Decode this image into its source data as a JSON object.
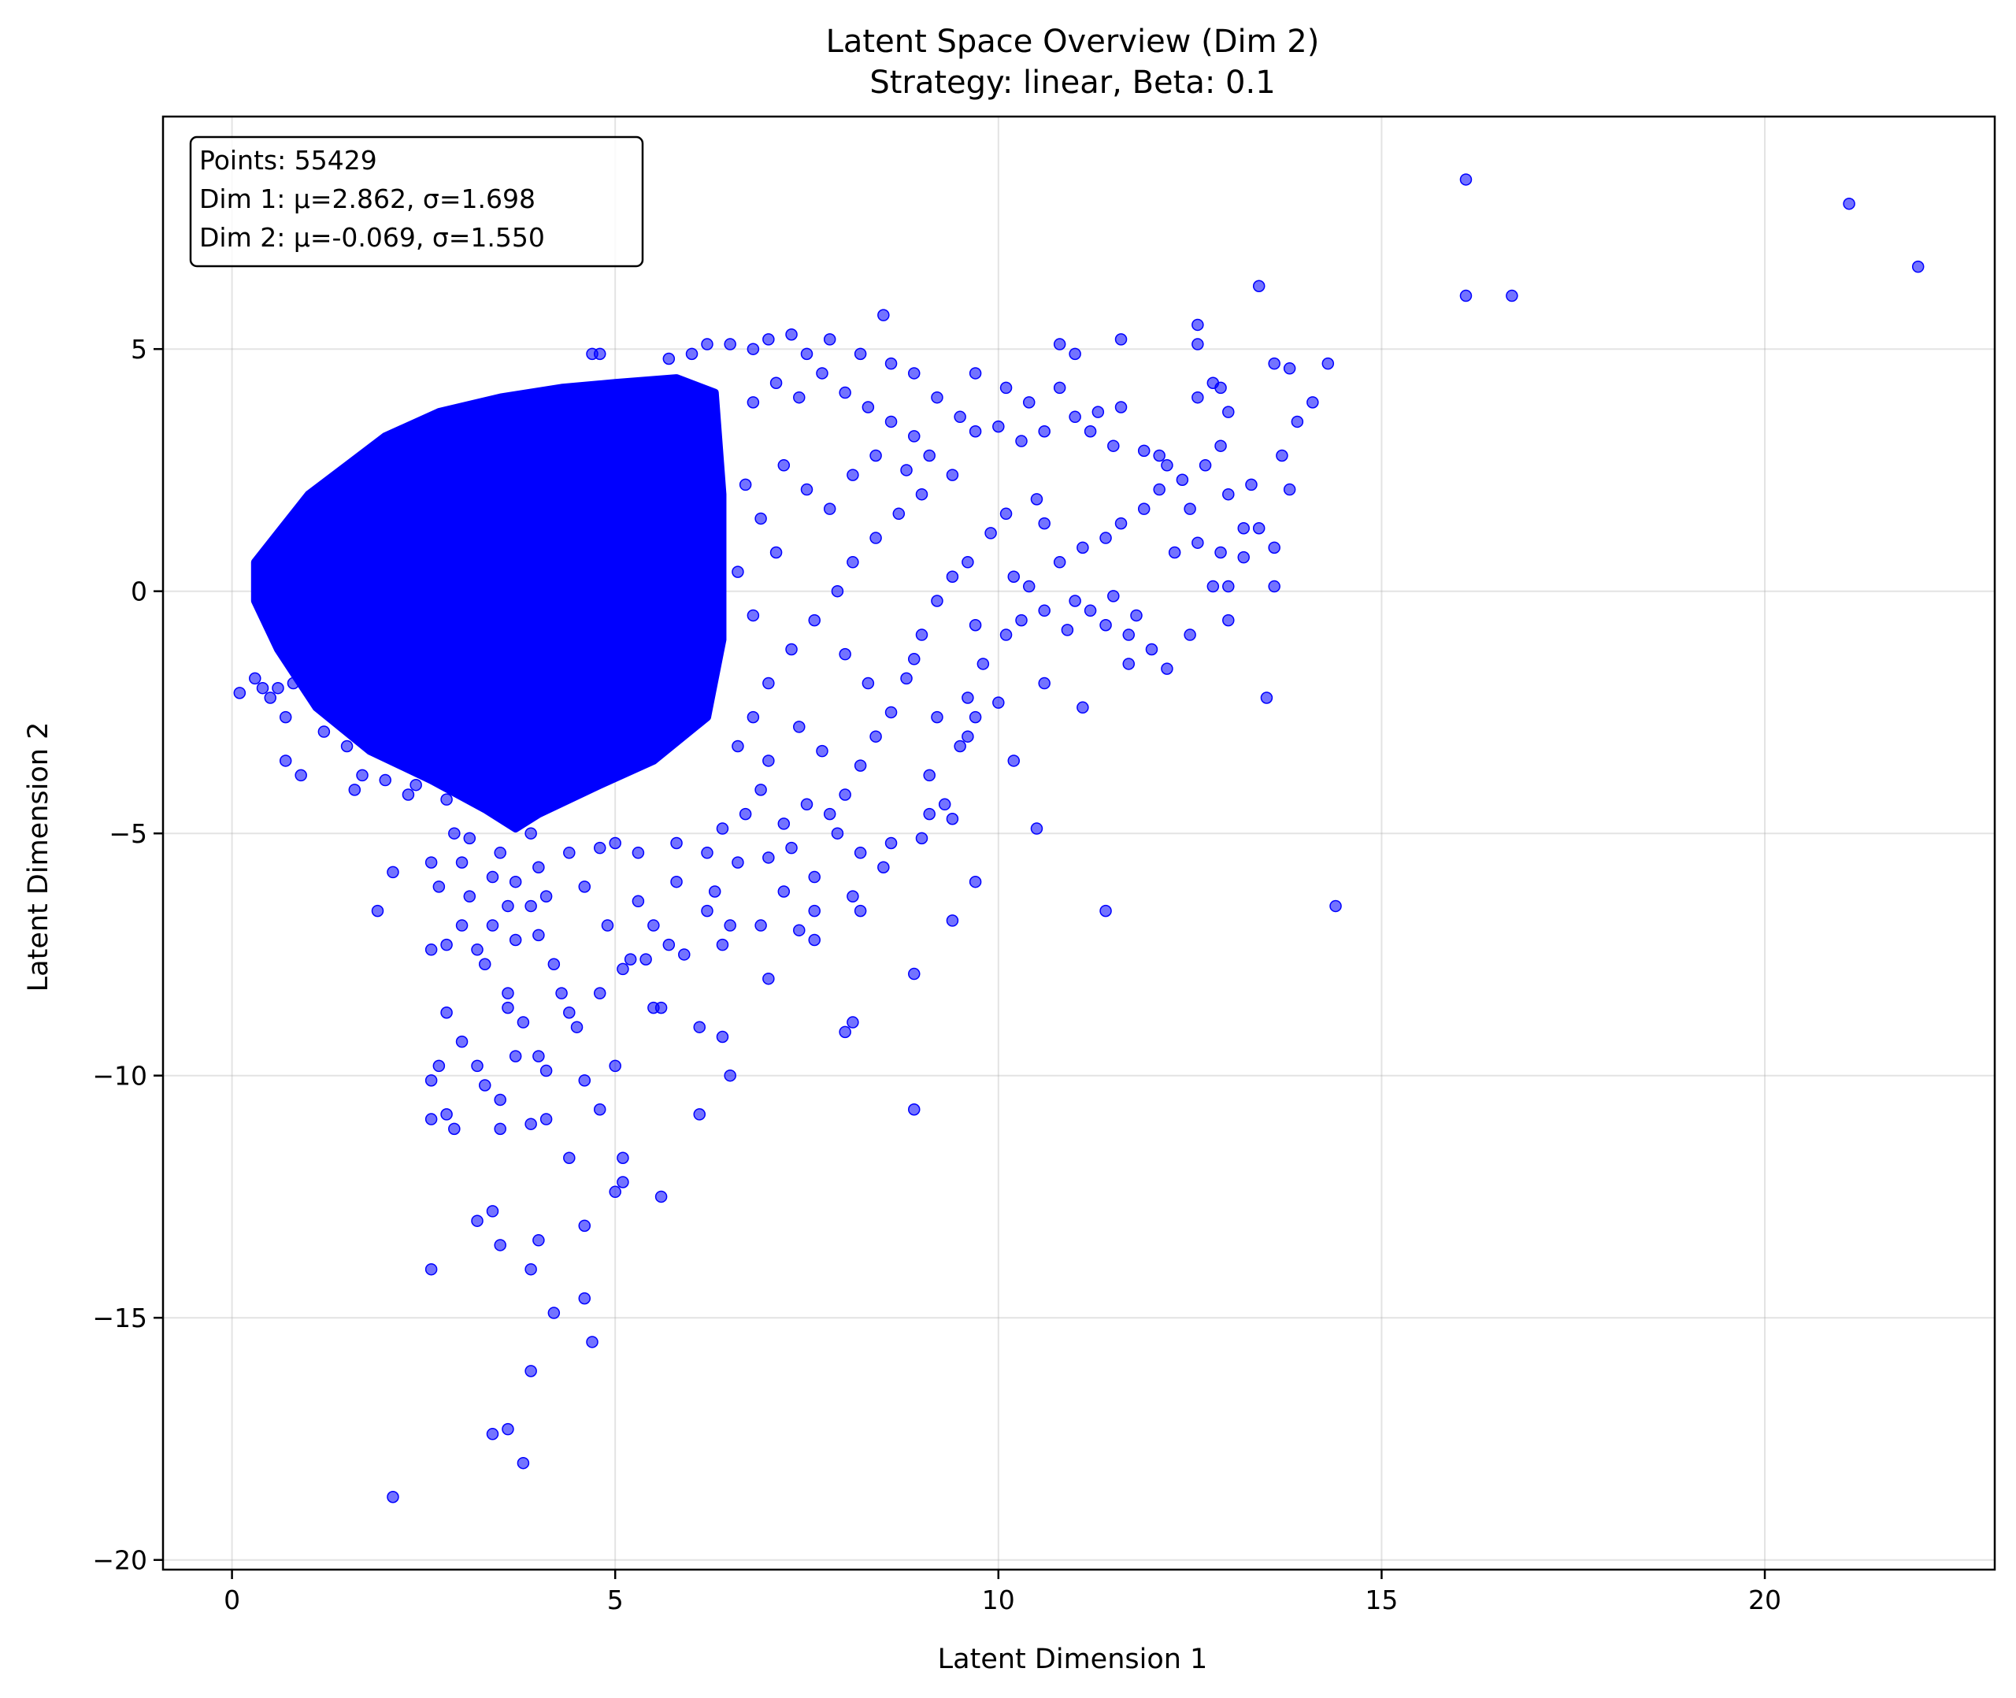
{
  "chart_data": {
    "type": "scatter",
    "title": "Latent Space Overview (Dim 2)",
    "subtitle": "Strategy: linear, Beta: 0.1",
    "xlabel": "Latent Dimension 1",
    "ylabel": "Latent Dimension 2",
    "xlim": [
      -0.9,
      23.0
    ],
    "ylim": [
      -20.2,
      9.8
    ],
    "xticks": [
      0,
      5,
      10,
      15,
      20
    ],
    "yticks": [
      5,
      0,
      -5,
      -10,
      -15,
      -20
    ],
    "xtick_labels": [
      "0",
      "5",
      "10",
      "15",
      "20"
    ],
    "ytick_labels": [
      "5",
      "0",
      "−5",
      "−10",
      "−15",
      "−20"
    ],
    "grid": true,
    "marker_color": "#0000ff",
    "marker_alpha": 0.55,
    "stats_box": {
      "line1": "Points: 55429",
      "line2": "Dim 1: μ=2.862, σ=1.698",
      "line3": "Dim 2: μ=-0.069, σ=1.550"
    },
    "dense_region": {
      "description_points": 55429,
      "core_polygon": [
        [
          0.3,
          0.6
        ],
        [
          0.6,
          1.2
        ],
        [
          1.0,
          2.0
        ],
        [
          1.5,
          2.6
        ],
        [
          2.0,
          3.2
        ],
        [
          2.7,
          3.7
        ],
        [
          3.5,
          4.0
        ],
        [
          4.3,
          4.2
        ],
        [
          5.0,
          4.3
        ],
        [
          5.8,
          4.4
        ],
        [
          6.3,
          4.1
        ],
        [
          6.4,
          2.0
        ],
        [
          6.4,
          -1.0
        ],
        [
          6.2,
          -2.6
        ],
        [
          5.5,
          -3.5
        ],
        [
          4.8,
          -4.0
        ],
        [
          4.0,
          -4.6
        ],
        [
          3.7,
          -4.9
        ],
        [
          3.3,
          -4.5
        ],
        [
          2.6,
          -3.9
        ],
        [
          1.8,
          -3.3
        ],
        [
          1.1,
          -2.4
        ],
        [
          0.6,
          -1.2
        ],
        [
          0.3,
          -0.2
        ]
      ]
    },
    "points": [
      [
        16.1,
        8.5
      ],
      [
        21.1,
        8.0
      ],
      [
        22.0,
        6.7
      ],
      [
        16.1,
        6.1
      ],
      [
        16.7,
        6.1
      ],
      [
        13.4,
        6.3
      ],
      [
        12.6,
        5.5
      ],
      [
        12.6,
        5.1
      ],
      [
        11.6,
        5.2
      ],
      [
        10.8,
        5.1
      ],
      [
        11.0,
        4.9
      ],
      [
        13.6,
        4.7
      ],
      [
        13.8,
        4.6
      ],
      [
        14.3,
        4.7
      ],
      [
        12.8,
        4.3
      ],
      [
        12.9,
        4.2
      ],
      [
        12.6,
        4.0
      ],
      [
        13.0,
        3.7
      ],
      [
        14.1,
        3.9
      ],
      [
        13.9,
        3.5
      ],
      [
        13.7,
        2.8
      ],
      [
        13.8,
        2.1
      ],
      [
        13.3,
        2.2
      ],
      [
        13.0,
        2.0
      ],
      [
        12.5,
        1.7
      ],
      [
        13.2,
        1.3
      ],
      [
        13.4,
        1.3
      ],
      [
        12.9,
        0.8
      ],
      [
        12.6,
        1.0
      ],
      [
        13.6,
        0.9
      ],
      [
        13.2,
        0.7
      ],
      [
        12.3,
        0.8
      ],
      [
        12.8,
        0.1
      ],
      [
        13.0,
        0.1
      ],
      [
        13.6,
        0.1
      ],
      [
        12.5,
        -0.9
      ],
      [
        13.0,
        -0.6
      ],
      [
        12.0,
        -1.2
      ],
      [
        11.7,
        -1.5
      ],
      [
        12.2,
        -1.6
      ],
      [
        13.5,
        -2.2
      ],
      [
        11.5,
        -0.1
      ],
      [
        11.4,
        -0.7
      ],
      [
        11.7,
        -0.9
      ],
      [
        11.8,
        -0.5
      ],
      [
        11.1,
        -2.4
      ],
      [
        10.6,
        -1.9
      ],
      [
        10.0,
        -2.3
      ],
      [
        9.7,
        -2.6
      ],
      [
        10.2,
        -3.5
      ],
      [
        9.6,
        -3.0
      ],
      [
        10.5,
        -4.9
      ],
      [
        9.4,
        -4.7
      ],
      [
        9.0,
        -5.1
      ],
      [
        9.4,
        -6.8
      ],
      [
        9.7,
        -6.0
      ],
      [
        8.9,
        -7.9
      ],
      [
        8.9,
        -10.7
      ],
      [
        11.4,
        -6.6
      ],
      [
        14.4,
        -6.5
      ],
      [
        8.5,
        -5.7
      ],
      [
        8.1,
        -6.3
      ],
      [
        8.2,
        -6.6
      ],
      [
        8.1,
        -8.9
      ],
      [
        8.0,
        -9.1
      ],
      [
        7.4,
        -7.0
      ],
      [
        7.6,
        -7.2
      ],
      [
        7.0,
        -8.0
      ],
      [
        7.2,
        -6.2
      ],
      [
        7.6,
        -6.6
      ],
      [
        6.9,
        -6.9
      ],
      [
        6.5,
        -6.9
      ],
      [
        6.4,
        -7.3
      ],
      [
        6.2,
        -6.6
      ],
      [
        6.1,
        -9.0
      ],
      [
        6.4,
        -9.2
      ],
      [
        6.5,
        -10.0
      ],
      [
        6.1,
        -10.8
      ],
      [
        5.9,
        -7.5
      ],
      [
        5.7,
        -7.3
      ],
      [
        5.4,
        -7.6
      ],
      [
        5.5,
        -8.6
      ],
      [
        5.6,
        -8.6
      ],
      [
        5.1,
        -7.8
      ],
      [
        5.2,
        -7.6
      ],
      [
        5.0,
        -9.8
      ],
      [
        4.8,
        -10.7
      ],
      [
        5.0,
        -12.4
      ],
      [
        5.1,
        -11.7
      ],
      [
        5.1,
        -12.2
      ],
      [
        5.6,
        -12.5
      ],
      [
        4.4,
        -11.7
      ],
      [
        4.6,
        -13.1
      ],
      [
        4.6,
        -10.1
      ],
      [
        4.5,
        -9.0
      ],
      [
        4.4,
        -8.7
      ],
      [
        4.3,
        -8.3
      ],
      [
        4.8,
        -8.3
      ],
      [
        4.2,
        -7.7
      ],
      [
        4.0,
        -7.1
      ],
      [
        3.9,
        -6.5
      ],
      [
        3.7,
        -6.0
      ],
      [
        3.6,
        -6.5
      ],
      [
        3.7,
        -7.2
      ],
      [
        3.4,
        -6.9
      ],
      [
        3.3,
        -7.7
      ],
      [
        3.2,
        -7.4
      ],
      [
        3.0,
        -6.9
      ],
      [
        2.8,
        -7.3
      ],
      [
        2.6,
        -7.4
      ],
      [
        3.0,
        -9.3
      ],
      [
        2.8,
        -8.7
      ],
      [
        2.7,
        -9.8
      ],
      [
        2.6,
        -10.1
      ],
      [
        2.8,
        -10.8
      ],
      [
        2.6,
        -10.9
      ],
      [
        2.9,
        -11.1
      ],
      [
        3.2,
        -9.8
      ],
      [
        3.3,
        -10.2
      ],
      [
        3.5,
        -10.5
      ],
      [
        3.5,
        -11.1
      ],
      [
        3.6,
        -8.3
      ],
      [
        3.6,
        -8.6
      ],
      [
        3.7,
        -9.6
      ],
      [
        3.8,
        -8.9
      ],
      [
        4.0,
        -9.6
      ],
      [
        4.1,
        -9.9
      ],
      [
        4.1,
        -10.9
      ],
      [
        3.9,
        -11.0
      ],
      [
        3.2,
        -13.0
      ],
      [
        3.4,
        -12.8
      ],
      [
        3.5,
        -13.5
      ],
      [
        4.0,
        -13.4
      ],
      [
        3.9,
        -14.0
      ],
      [
        4.2,
        -14.9
      ],
      [
        4.6,
        -14.6
      ],
      [
        4.7,
        -15.5
      ],
      [
        3.9,
        -16.1
      ],
      [
        3.4,
        -17.4
      ],
      [
        3.6,
        -17.3
      ],
      [
        3.8,
        -18.0
      ],
      [
        2.1,
        -18.7
      ],
      [
        2.6,
        -14.0
      ],
      [
        1.9,
        -6.6
      ],
      [
        2.1,
        -5.8
      ],
      [
        2.6,
        -5.6
      ],
      [
        2.9,
        -5.0
      ],
      [
        1.6,
        -4.1
      ],
      [
        1.7,
        -3.8
      ],
      [
        0.9,
        -3.8
      ],
      [
        0.7,
        -3.5
      ],
      [
        0.4,
        -2.0
      ],
      [
        0.1,
        -2.1
      ],
      [
        0.3,
        -1.8
      ],
      [
        0.6,
        -2.0
      ],
      [
        0.5,
        -2.2
      ],
      [
        0.8,
        -1.9
      ],
      [
        0.7,
        -2.6
      ],
      [
        1.2,
        -2.9
      ],
      [
        1.5,
        -3.2
      ],
      [
        2.0,
        -3.9
      ],
      [
        2.4,
        -4.0
      ],
      [
        2.3,
        -4.2
      ],
      [
        2.8,
        -4.3
      ],
      [
        3.1,
        -5.1
      ],
      [
        3.5,
        -5.4
      ],
      [
        3.9,
        -5.0
      ],
      [
        4.4,
        -5.4
      ],
      [
        4.8,
        -5.3
      ],
      [
        5.0,
        -5.2
      ],
      [
        5.3,
        -5.4
      ],
      [
        5.8,
        -5.2
      ],
      [
        6.2,
        -5.4
      ],
      [
        6.6,
        -5.6
      ],
      [
        7.0,
        -5.5
      ],
      [
        7.3,
        -5.3
      ],
      [
        7.6,
        -5.9
      ],
      [
        7.9,
        -5.0
      ],
      [
        8.2,
        -5.4
      ],
      [
        8.6,
        -5.2
      ],
      [
        9.1,
        -4.6
      ],
      [
        9.3,
        -4.4
      ],
      [
        9.1,
        -3.8
      ],
      [
        9.5,
        -3.2
      ],
      [
        9.2,
        -2.6
      ],
      [
        9.6,
        -2.2
      ],
      [
        9.8,
        -1.5
      ],
      [
        9.7,
        -0.7
      ],
      [
        10.1,
        -0.9
      ],
      [
        10.3,
        -0.6
      ],
      [
        10.6,
        -0.4
      ],
      [
        10.9,
        -0.8
      ],
      [
        11.0,
        -0.2
      ],
      [
        11.2,
        -0.4
      ],
      [
        10.4,
        0.1
      ],
      [
        10.2,
        0.3
      ],
      [
        10.8,
        0.6
      ],
      [
        11.1,
        0.9
      ],
      [
        11.4,
        1.1
      ],
      [
        11.6,
        1.4
      ],
      [
        11.9,
        1.7
      ],
      [
        12.1,
        2.1
      ],
      [
        12.2,
        2.6
      ],
      [
        11.9,
        2.9
      ],
      [
        11.5,
        3.0
      ],
      [
        11.2,
        3.3
      ],
      [
        11.0,
        3.6
      ],
      [
        10.6,
        3.3
      ],
      [
        10.3,
        3.1
      ],
      [
        10.0,
        3.4
      ],
      [
        9.7,
        3.3
      ],
      [
        9.5,
        3.6
      ],
      [
        9.2,
        4.0
      ],
      [
        8.9,
        4.5
      ],
      [
        8.6,
        4.7
      ],
      [
        8.5,
        5.7
      ],
      [
        8.2,
        4.9
      ],
      [
        7.8,
        5.2
      ],
      [
        7.5,
        4.9
      ],
      [
        7.3,
        5.3
      ],
      [
        7.0,
        5.2
      ],
      [
        6.8,
        5.0
      ],
      [
        6.5,
        5.1
      ],
      [
        6.2,
        5.1
      ],
      [
        6.0,
        4.9
      ],
      [
        5.7,
        4.8
      ],
      [
        4.8,
        4.9
      ],
      [
        4.7,
        4.9
      ],
      [
        9.7,
        4.5
      ],
      [
        10.1,
        4.2
      ],
      [
        10.4,
        3.9
      ],
      [
        10.8,
        4.2
      ],
      [
        11.3,
        3.7
      ],
      [
        11.6,
        3.8
      ],
      [
        12.1,
        2.8
      ],
      [
        12.4,
        2.3
      ],
      [
        12.7,
        2.6
      ],
      [
        12.9,
        3.0
      ],
      [
        10.5,
        1.9
      ],
      [
        10.1,
        1.6
      ],
      [
        9.9,
        1.2
      ],
      [
        10.6,
        1.4
      ],
      [
        9.6,
        0.6
      ],
      [
        9.4,
        0.3
      ],
      [
        9.2,
        -0.2
      ],
      [
        9.0,
        -0.9
      ],
      [
        8.9,
        -1.4
      ],
      [
        8.8,
        -1.8
      ],
      [
        8.6,
        -2.5
      ],
      [
        8.4,
        -3.0
      ],
      [
        8.2,
        -3.6
      ],
      [
        8.0,
        -4.2
      ],
      [
        7.8,
        -4.6
      ],
      [
        7.5,
        -4.4
      ],
      [
        7.2,
        -4.8
      ],
      [
        6.9,
        -4.1
      ],
      [
        6.7,
        -4.6
      ],
      [
        6.4,
        -4.9
      ],
      [
        6.8,
        3.9
      ],
      [
        7.1,
        4.3
      ],
      [
        7.4,
        4.0
      ],
      [
        7.7,
        4.5
      ],
      [
        8.0,
        4.1
      ],
      [
        8.3,
        3.8
      ],
      [
        8.6,
        3.5
      ],
      [
        8.9,
        3.2
      ],
      [
        9.1,
        2.8
      ],
      [
        9.4,
        2.4
      ],
      [
        9.0,
        2.0
      ],
      [
        8.7,
        1.6
      ],
      [
        8.4,
        1.1
      ],
      [
        8.1,
        0.6
      ],
      [
        7.9,
        0.0
      ],
      [
        7.6,
        -0.6
      ],
      [
        7.3,
        -1.2
      ],
      [
        7.0,
        -1.9
      ],
      [
        6.8,
        -2.6
      ],
      [
        6.6,
        -3.2
      ],
      [
        7.2,
        2.6
      ],
      [
        7.5,
        2.1
      ],
      [
        7.8,
        1.7
      ],
      [
        8.1,
        2.4
      ],
      [
        8.4,
        2.8
      ],
      [
        8.8,
        2.5
      ],
      [
        7.1,
        0.8
      ],
      [
        6.9,
        1.5
      ],
      [
        6.7,
        2.2
      ],
      [
        6.6,
        0.4
      ],
      [
        6.8,
        -0.5
      ],
      [
        7.0,
        -3.5
      ],
      [
        7.4,
        -2.8
      ],
      [
        7.7,
        -3.3
      ],
      [
        8.3,
        -1.9
      ],
      [
        8.0,
        -1.3
      ],
      [
        3.4,
        -5.9
      ],
      [
        3.0,
        -5.6
      ],
      [
        2.7,
        -6.1
      ],
      [
        4.1,
        -6.3
      ],
      [
        4.6,
        -6.1
      ],
      [
        5.3,
        -6.4
      ],
      [
        5.8,
        -6.0
      ],
      [
        6.3,
        -6.2
      ],
      [
        4.9,
        -6.9
      ],
      [
        5.5,
        -6.9
      ],
      [
        3.1,
        -6.3
      ],
      [
        4.0,
        -5.7
      ]
    ]
  }
}
